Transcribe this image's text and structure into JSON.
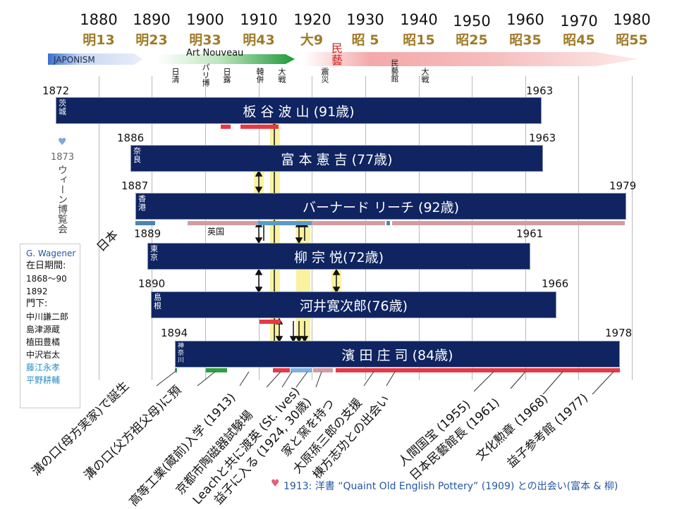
{
  "years": [
    {
      "year": "1880",
      "era": "明13"
    },
    {
      "year": "1890",
      "era": "明23"
    },
    {
      "year": "1900",
      "era": "明33"
    },
    {
      "year": "1910",
      "era": "明43"
    },
    {
      "year": "1920",
      "era": "大9"
    },
    {
      "year": "1930",
      "era": "昭 5"
    },
    {
      "year": "1940",
      "era": "昭15"
    },
    {
      "year": "1950",
      "era": "昭25"
    },
    {
      "year": "1960",
      "era": "昭35"
    },
    {
      "year": "1970",
      "era": "昭45"
    },
    {
      "year": "1980",
      "era": "昭55"
    }
  ],
  "movements": {
    "japonism": "JAPONISM",
    "art_nouveau": "Art Nouveau",
    "mingei": "民藝"
  },
  "events": [
    "日清",
    "パリ博",
    "日露",
    "韓併",
    "大戦",
    "震災",
    "民藝館",
    "大戦"
  ],
  "persons": [
    {
      "name": "板 谷 波 山 (91歳)",
      "place": "茨城",
      "born": "1872",
      "died": "1963"
    },
    {
      "name": "富 本 憲 吉 (77歳)",
      "place": "奈良",
      "born": "1886",
      "died": "1963"
    },
    {
      "name": "バーナード リーチ (92歳)",
      "place": "香港",
      "born": "1887",
      "died": "1979",
      "sub": "英国"
    },
    {
      "name": "柳  宗 悦(72歳)",
      "place": "東京",
      "born": "1889",
      "died": "1961"
    },
    {
      "name": "河井寛次郎(76歳)",
      "place": "島根",
      "born": "1890",
      "died": "1966"
    },
    {
      "name": "濱 田 庄 司 (84歳)",
      "place": "神奈川",
      "born": "1894",
      "died": "1978"
    }
  ],
  "vienna": {
    "year": "1873",
    "label": "ウィーン博覧会"
  },
  "japan_label": "日本",
  "wagener": {
    "name": "G. Wagener",
    "period_label": "在日期間:",
    "period1": "1868〜90",
    "period2": "1892",
    "students_label": "門下:",
    "students": [
      "中川謙二郎",
      "島津源蔵",
      "植田豊橘",
      "中沢岩太"
    ],
    "students_blue": [
      "藤江永孝",
      "平野耕輔"
    ]
  },
  "milestones": [
    "溝の口(母方実家)で誕生",
    "溝の口(父方祖父母)に預",
    "高等工業(蔵前)入学 (1913)",
    "京都市陶磁器試験場",
    "Leachと共に渡英 (St. Ives)",
    "益子に入る (1924, 30歳)",
    "家と窯を持つ",
    "大原孫三郎の支援",
    "棟方志功との出会い",
    "人間国宝 (1955)",
    "日本民藝館長 (1961)",
    "文化勲章 (1968)",
    "益子参考館 (1977)"
  ],
  "footer": "1913: 洋書 “Quaint Old English Pottery” (1909) との出会い(富本 & 柳)",
  "colors": {
    "bar": "#0f2460",
    "era": "#a07a2a",
    "red": "#e63946",
    "green": "#2e9e3f",
    "blue": "#7fb0e0",
    "pink": "#e07a8a"
  }
}
